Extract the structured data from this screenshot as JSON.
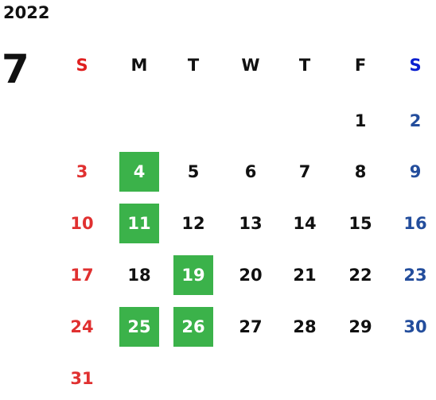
{
  "header": {
    "year": "2022",
    "month": "7"
  },
  "weekdays": [
    "S",
    "M",
    "T",
    "W",
    "T",
    "F",
    "S"
  ],
  "weeks": [
    [
      null,
      null,
      null,
      null,
      null,
      1,
      2
    ],
    [
      3,
      4,
      5,
      6,
      7,
      8,
      9
    ],
    [
      10,
      11,
      12,
      13,
      14,
      15,
      16
    ],
    [
      17,
      18,
      19,
      20,
      21,
      22,
      23
    ],
    [
      24,
      25,
      26,
      27,
      28,
      29,
      30
    ],
    [
      31,
      null,
      null,
      null,
      null,
      null,
      null
    ]
  ],
  "highlighted": [
    4,
    11,
    19,
    25,
    26
  ],
  "highlight_color": "#3bb24a"
}
